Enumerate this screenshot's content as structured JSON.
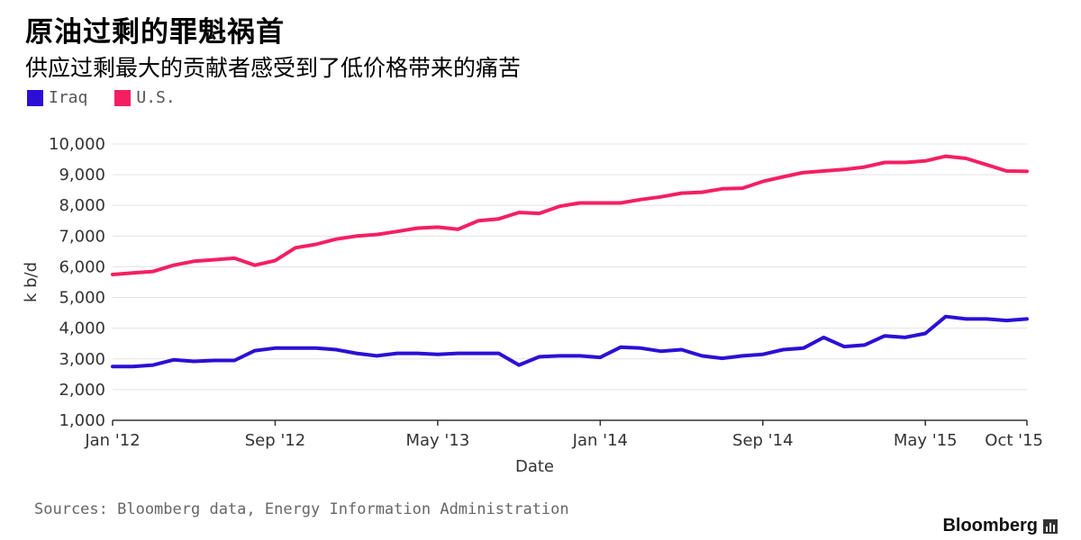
{
  "header": {
    "title": "原油过剩的罪魁祸首",
    "subtitle": "供应过剩最大的贡献者感受到了低价格带来的痛苦"
  },
  "footer": {
    "source": "Sources: Bloomberg data, Energy Information Administration",
    "brand": "Bloomberg",
    "brand_icon": "bar-chart-icon"
  },
  "colors": {
    "iraq": "#2b0fd6",
    "us": "#f41f63",
    "grid": "#e3e3e3",
    "axis": "#333333"
  },
  "chart_data": {
    "type": "line",
    "xlabel": "Date",
    "ylabel": "k b/d",
    "ylim": [
      1000,
      10000
    ],
    "yticks": [
      "1,000",
      "2,000",
      "3,000",
      "4,000",
      "5,000",
      "6,000",
      "7,000",
      "8,000",
      "9,000",
      "10,000"
    ],
    "ytick_values": [
      1000,
      2000,
      3000,
      4000,
      5000,
      6000,
      7000,
      8000,
      9000,
      10000
    ],
    "xticks": [
      {
        "label": "Jan '12",
        "month": 0
      },
      {
        "label": "Sep '12",
        "month": 8
      },
      {
        "label": "May '13",
        "month": 16
      },
      {
        "label": "Jan '14",
        "month": 24
      },
      {
        "label": "Sep '14",
        "month": 32
      },
      {
        "label": "May '15",
        "month": 40
      },
      {
        "label": "Oct '15",
        "month": 45
      }
    ],
    "xlim": [
      0,
      45
    ],
    "grid": true,
    "legend_position": "top-left",
    "series": [
      {
        "name": "Iraq",
        "color": "#2b0fd6",
        "values": [
          2750,
          2750,
          2800,
          2970,
          2920,
          2950,
          2950,
          3270,
          3350,
          3350,
          3350,
          3300,
          3180,
          3100,
          3180,
          3180,
          3150,
          3180,
          3180,
          3180,
          2800,
          3070,
          3100,
          3100,
          3050,
          3380,
          3350,
          3250,
          3300,
          3100,
          3020,
          3100,
          3150,
          3300,
          3350,
          3700,
          3400,
          3450,
          3750,
          3700,
          3830,
          4380,
          4300,
          4300,
          4250,
          4300
        ]
      },
      {
        "name": "U.S.",
        "color": "#f41f63",
        "values": [
          5750,
          5800,
          5850,
          6050,
          6180,
          6230,
          6280,
          6050,
          6200,
          6620,
          6730,
          6900,
          7000,
          7050,
          7150,
          7260,
          7290,
          7220,
          7500,
          7560,
          7770,
          7740,
          7970,
          8080,
          8080,
          8080,
          8190,
          8280,
          8400,
          8430,
          8540,
          8560,
          8780,
          8930,
          9070,
          9120,
          9170,
          9250,
          9400,
          9400,
          9450,
          9600,
          9530,
          9330,
          9120,
          9110
        ]
      }
    ]
  }
}
